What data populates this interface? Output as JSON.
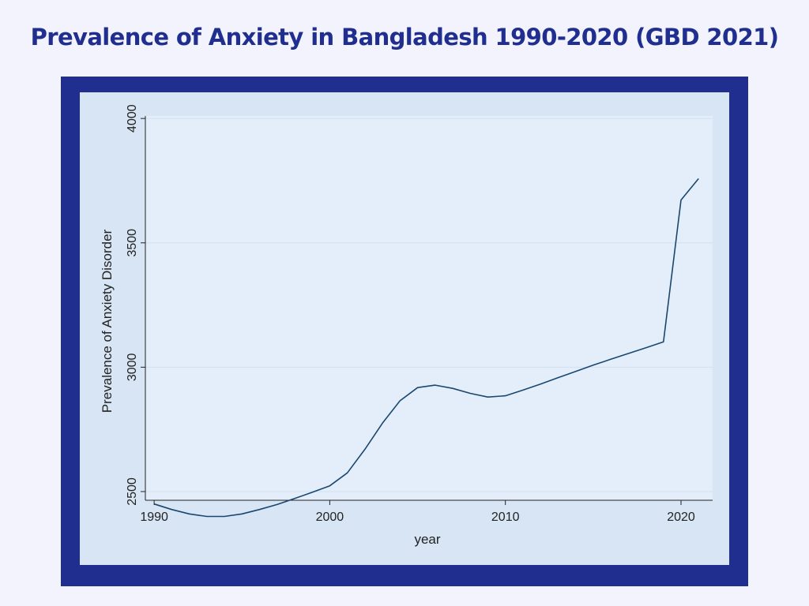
{
  "title": "Prevalence of Anxiety in Bangladesh 1990-2020 (GBD 2021)",
  "colors": {
    "title": "#1f2e8f",
    "frame": "#1f2e8f",
    "panel": "#d7e5f4",
    "plot_area": "#e3eefa",
    "grid": "#d0e0f0",
    "line": "#1a476f"
  },
  "chart_data": {
    "type": "line",
    "title": "",
    "xlabel": "year",
    "ylabel": "Prevalence of Anxiety Disorder",
    "xlim": [
      1989.5,
      2021.8
    ],
    "ylim": [
      2465,
      4010
    ],
    "x_ticks": [
      1990,
      2000,
      2010,
      2020
    ],
    "y_ticks": [
      2500,
      3000,
      3500,
      4000
    ],
    "grid": true,
    "legend": "none",
    "series": [
      {
        "x": [
          1990,
          1991,
          1992,
          1993,
          1994,
          1995,
          1996,
          1997,
          1998,
          1999,
          2000,
          2001,
          2002,
          2003,
          2004,
          2005,
          2006,
          2007,
          2008,
          2009,
          2010,
          2011,
          2012,
          2013,
          2014,
          2015,
          2016,
          2017,
          2018,
          2019,
          2020,
          2021
        ],
        "values": [
          2450,
          2428,
          2410,
          2400,
          2400,
          2410,
          2428,
          2448,
          2472,
          2497,
          2523,
          2575,
          2670,
          2775,
          2865,
          2918,
          2928,
          2915,
          2895,
          2880,
          2885,
          2908,
          2932,
          2958,
          2983,
          3008,
          3032,
          3055,
          3078,
          3102,
          3672,
          3758
        ]
      }
    ]
  }
}
